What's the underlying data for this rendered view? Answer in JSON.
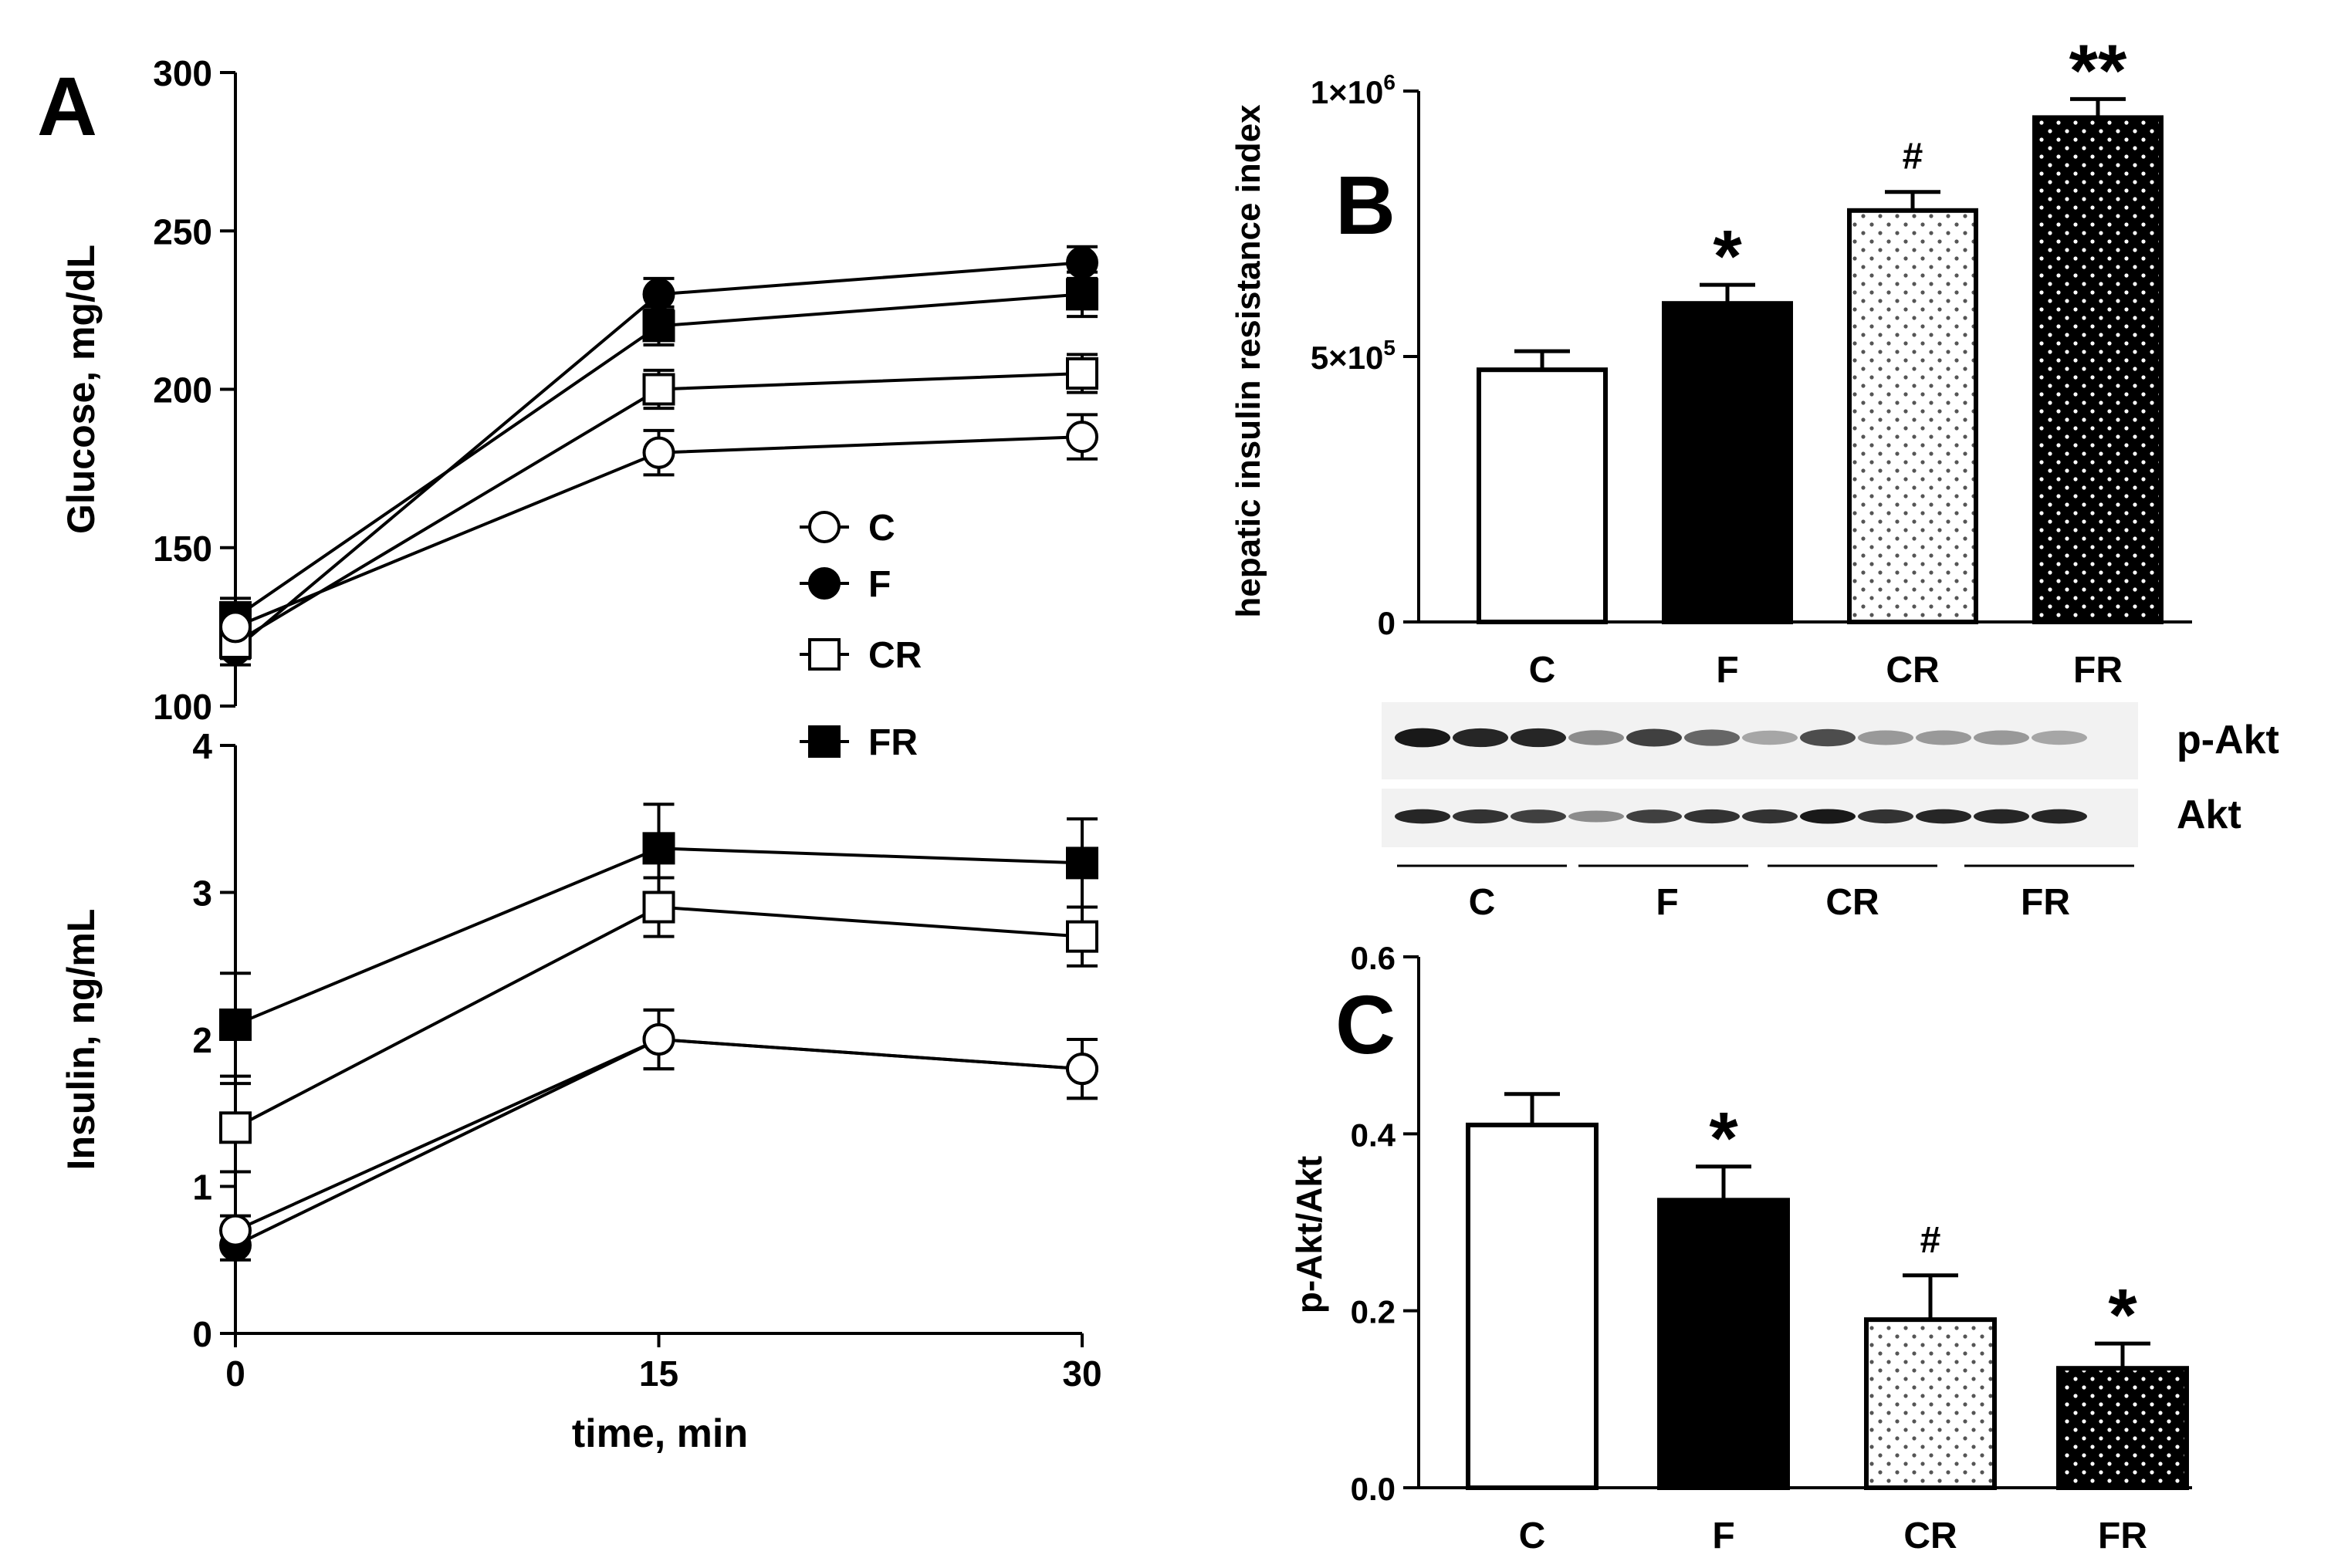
{
  "panels": {
    "a": "A",
    "b": "B",
    "c": "C"
  },
  "blot": {
    "row_labels": [
      "p-Akt",
      "Akt"
    ],
    "groups": [
      "C",
      "F",
      "CR",
      "FR"
    ],
    "p_akt_intensity": [
      0.9,
      0.85,
      0.85,
      0.45,
      0.75,
      0.6,
      0.35,
      0.7,
      0.4,
      0.4,
      0.4,
      0.35
    ],
    "akt_intensity": [
      0.85,
      0.8,
      0.75,
      0.45,
      0.75,
      0.8,
      0.8,
      0.9,
      0.8,
      0.85,
      0.85,
      0.85
    ]
  },
  "chart_data": [
    {
      "id": "glucose",
      "type": "line",
      "ylabel": "Glucose, mg/dL",
      "ylim": [
        100,
        300
      ],
      "yticks": [
        100,
        150,
        200,
        250,
        300
      ],
      "x": [
        0,
        15,
        30
      ],
      "series": [
        {
          "name": "C",
          "marker": "open-circle",
          "values": [
            125,
            180,
            185
          ],
          "errors": [
            5,
            7,
            7
          ]
        },
        {
          "name": "F",
          "marker": "filled-circle",
          "values": [
            118,
            230,
            240
          ],
          "errors": [
            5,
            5,
            5
          ]
        },
        {
          "name": "CR",
          "marker": "open-square",
          "values": [
            120,
            200,
            205
          ],
          "errors": [
            5,
            6,
            6
          ]
        },
        {
          "name": "FR",
          "marker": "filled-square",
          "values": [
            128,
            220,
            230
          ],
          "errors": [
            6,
            6,
            7
          ]
        }
      ]
    },
    {
      "id": "insulin",
      "type": "line",
      "xlabel": "time, min",
      "ylabel": "Insulin, ng/mL",
      "ylim": [
        0,
        4
      ],
      "yticks": [
        0,
        1,
        2,
        3,
        4
      ],
      "x": [
        0,
        15,
        30
      ],
      "xticks": [
        0,
        15,
        30
      ],
      "series": [
        {
          "name": "C",
          "marker": "open-circle",
          "values": [
            0.7,
            2.0,
            1.8
          ],
          "errors": [
            0.1,
            0.2,
            0.2
          ]
        },
        {
          "name": "F",
          "marker": "filled-circle",
          "values": [
            0.6,
            2.0,
            1.8
          ],
          "errors": [
            0.1,
            0.2,
            0.2
          ]
        },
        {
          "name": "CR",
          "marker": "open-square",
          "values": [
            1.4,
            2.9,
            2.7
          ],
          "errors": [
            0.3,
            0.2,
            0.2
          ]
        },
        {
          "name": "FR",
          "marker": "filled-square",
          "values": [
            2.1,
            3.3,
            3.2
          ],
          "errors": [
            0.35,
            0.3,
            0.3
          ]
        }
      ]
    },
    {
      "id": "hepatic",
      "type": "bar",
      "ylabel": "hepatic insulin resistance index",
      "ylim": [
        0,
        1000000
      ],
      "yticks": [
        {
          "value": 0,
          "base": "0",
          "exp": ""
        },
        {
          "value": 500000,
          "base": "5×10",
          "exp": "5"
        },
        {
          "value": 1000000,
          "base": "1×10",
          "exp": "6"
        }
      ],
      "categories": [
        "C",
        "F",
        "CR",
        "FR"
      ],
      "values": [
        475000,
        600000,
        775000,
        950000
      ],
      "errors": [
        35000,
        35000,
        35000,
        35000
      ],
      "fills": [
        "white",
        "black",
        "light-dots",
        "dark-dots"
      ],
      "annotations": [
        "",
        "*",
        "#",
        "**"
      ]
    },
    {
      "id": "pakt",
      "type": "bar",
      "ylabel": "p-Akt/Akt",
      "ylim": [
        0,
        0.6
      ],
      "yticks": [
        {
          "value": 0,
          "base": "0.0",
          "exp": ""
        },
        {
          "value": 0.2,
          "base": "0.2",
          "exp": ""
        },
        {
          "value": 0.4,
          "base": "0.4",
          "exp": ""
        },
        {
          "value": 0.6,
          "base": "0.6",
          "exp": ""
        }
      ],
      "categories": [
        "C",
        "F",
        "CR",
        "FR"
      ],
      "values": [
        0.41,
        0.325,
        0.19,
        0.135
      ],
      "errors": [
        0.035,
        0.038,
        0.05,
        0.028
      ],
      "fills": [
        "white",
        "black",
        "light-dots",
        "dark-dots"
      ],
      "annotations": [
        "",
        "*",
        "#",
        "*"
      ]
    }
  ]
}
